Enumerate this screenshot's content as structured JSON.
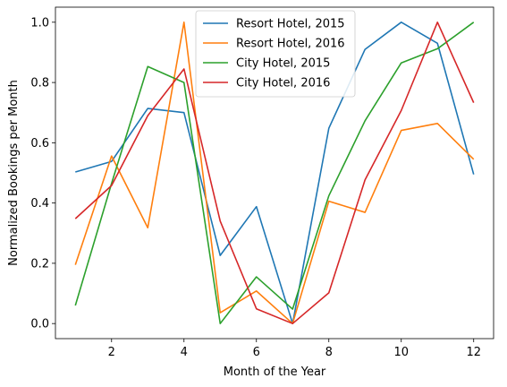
{
  "chart_data": {
    "type": "line",
    "title": "",
    "xlabel": "Month of the Year",
    "ylabel": "Normalized Bookings per Month",
    "x": [
      1,
      2,
      3,
      4,
      5,
      6,
      7,
      8,
      9,
      10,
      11,
      12
    ],
    "xlim": [
      0.45,
      12.55
    ],
    "ylim": [
      -0.05,
      1.05
    ],
    "xticks": [
      2,
      4,
      6,
      8,
      10,
      12
    ],
    "xtick_labels": [
      "2",
      "4",
      "6",
      "8",
      "10",
      "12"
    ],
    "yticks": [
      0.0,
      0.2,
      0.4,
      0.6,
      0.8,
      1.0
    ],
    "ytick_labels": [
      "0.0",
      "0.2",
      "0.4",
      "0.6",
      "0.8",
      "1.0"
    ],
    "grid": false,
    "legend_position": "top-center",
    "series": [
      {
        "name": "Resort Hotel, 2015",
        "color": "#1f77b4",
        "values": [
          0.503,
          0.538,
          0.714,
          0.7,
          0.226,
          0.388,
          0.0,
          0.648,
          0.91,
          1.0,
          0.93,
          0.495
        ]
      },
      {
        "name": "Resort Hotel, 2016",
        "color": "#ff7f0e",
        "values": [
          0.195,
          0.556,
          0.318,
          1.0,
          0.036,
          0.108,
          0.0,
          0.406,
          0.369,
          0.641,
          0.664,
          0.545
        ]
      },
      {
        "name": "City Hotel, 2015",
        "color": "#2ca02c",
        "values": [
          0.06,
          0.465,
          0.853,
          0.8,
          0.0,
          0.155,
          0.048,
          0.424,
          0.673,
          0.865,
          0.912,
          1.0
        ]
      },
      {
        "name": "City Hotel, 2016",
        "color": "#d62728",
        "values": [
          0.348,
          0.458,
          0.69,
          0.845,
          0.34,
          0.049,
          0.0,
          0.102,
          0.477,
          0.707,
          1.0,
          0.733
        ]
      }
    ]
  }
}
